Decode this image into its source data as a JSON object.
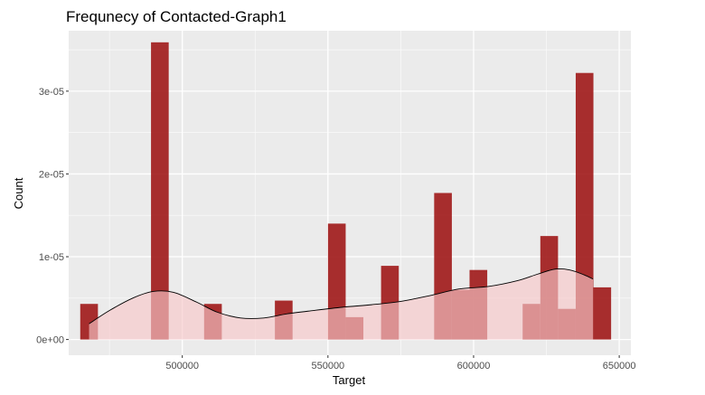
{
  "chart_data": {
    "type": "bar",
    "title": "Frequnecy of Contacted-Graph1",
    "xlabel": "Target",
    "ylabel": "Count",
    "xlim": [
      461000,
      654000
    ],
    "ylim": [
      -1.9e-06,
      3.73e-05
    ],
    "x_ticks": [
      {
        "value": 500000,
        "label": "500000"
      },
      {
        "value": 550000,
        "label": "550000"
      },
      {
        "value": 600000,
        "label": "600000"
      },
      {
        "value": 650000,
        "label": "650000"
      }
    ],
    "y_ticks": [
      {
        "value": 0,
        "label": "0e+00"
      },
      {
        "value": 1e-05,
        "label": "1e-05"
      },
      {
        "value": 2e-05,
        "label": "2e-05"
      },
      {
        "value": 3e-05,
        "label": "3e-05"
      }
    ],
    "grid": true,
    "bin_width": 6075,
    "bins": [
      {
        "x": 468000,
        "value": 4.3e-06
      },
      {
        "x": 492300,
        "value": 3.59e-05
      },
      {
        "x": 510525,
        "value": 4.3e-06
      },
      {
        "x": 534825,
        "value": 4.7e-06
      },
      {
        "x": 553050,
        "value": 1.4e-05
      },
      {
        "x": 559125,
        "value": 2.7e-06
      },
      {
        "x": 571275,
        "value": 8.9e-06
      },
      {
        "x": 589500,
        "value": 1.77e-05
      },
      {
        "x": 595575,
        "value": 6e-06
      },
      {
        "x": 601650,
        "value": 8.4e-06
      },
      {
        "x": 619875,
        "value": 4.3e-06
      },
      {
        "x": 625950,
        "value": 1.25e-05
      },
      {
        "x": 632025,
        "value": 3.7e-06
      },
      {
        "x": 638100,
        "value": 3.22e-05
      },
      {
        "x": 644175,
        "value": 6.3e-06
      }
    ],
    "density_curve": {
      "x": [
        468000,
        475000,
        483000,
        490000,
        497000,
        505000,
        512000,
        520000,
        528000,
        536000,
        545000,
        555000,
        565000,
        575000,
        585000,
        595000,
        605000,
        615000,
        622000,
        628000,
        633000,
        638000,
        641000
      ],
      "y": [
        1.9e-06,
        3.5e-06,
        5e-06,
        5.8e-06,
        5.7e-06,
        4.5e-06,
        3.3e-06,
        2.6e-06,
        2.6e-06,
        3.1e-06,
        3.5e-06,
        3.9e-06,
        4.2e-06,
        4.6e-06,
        5.3e-06,
        6.1e-06,
        6.4e-06,
        7.1e-06,
        7.9e-06,
        8.5e-06,
        8.4e-06,
        7.8e-06,
        7.3e-06
      ]
    },
    "colors": {
      "panel": "#ebebeb",
      "grid_major": "#ffffff",
      "bar_fill": "#a01818",
      "bar_opacity": 0.9,
      "density_fill": "#f8c7c9",
      "density_opacity": 0.65,
      "density_line": "#000000"
    }
  }
}
